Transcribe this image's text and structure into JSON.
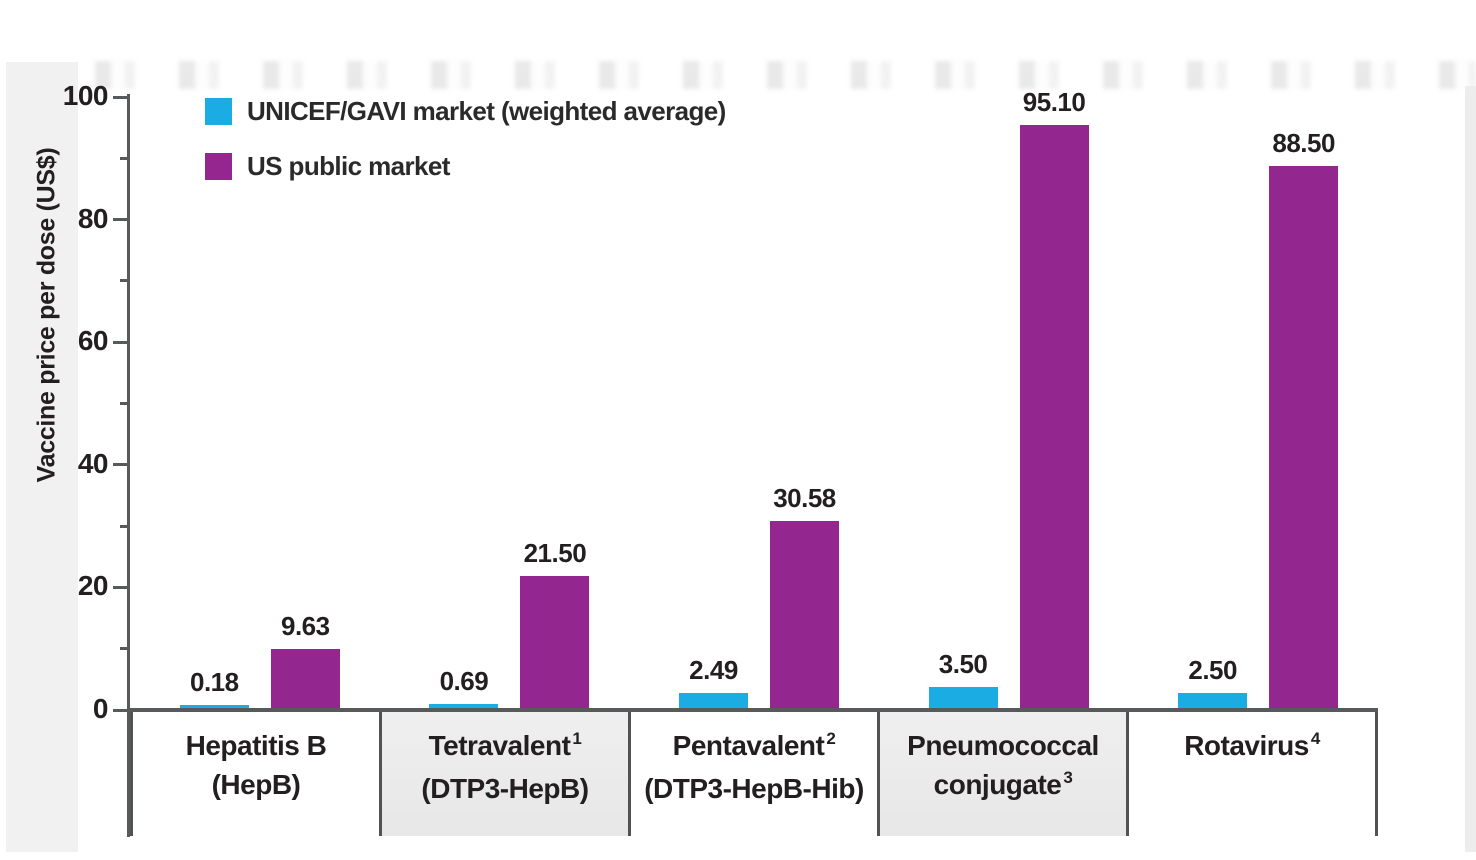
{
  "chart_data": {
    "type": "bar",
    "title": "",
    "ylabel": "Vaccine price per dose (US$)",
    "ylim": [
      0,
      100
    ],
    "yticks_major": [
      0,
      20,
      40,
      60,
      80,
      100
    ],
    "yticks_minor": [
      10,
      30,
      50,
      70,
      90
    ],
    "grid": false,
    "legend_position": "top-left-inside",
    "categories": [
      {
        "line1": "Hepatitis B",
        "line2": "(HepB)",
        "sup": "",
        "sup_on": 0
      },
      {
        "line1": "Tetravalent",
        "line2": "(DTP3-HepB)",
        "sup": "1",
        "sup_on": 1
      },
      {
        "line1": "Pentavalent",
        "line2": "(DTP3-HepB-Hib)",
        "sup": "2",
        "sup_on": 1
      },
      {
        "line1": "Pneumococcal",
        "line2": "conjugate",
        "sup": "3",
        "sup_on": 2
      },
      {
        "line1": "Rotavirus",
        "line2": "",
        "sup": "4",
        "sup_on": 1
      }
    ],
    "series": [
      {
        "name": "UNICEF/GAVI market (weighted average)",
        "color": "#1aace3",
        "values": [
          0.18,
          0.69,
          2.49,
          3.5,
          2.5
        ],
        "labels": [
          "0.18",
          "0.69",
          "2.49",
          "3.50",
          "2.50"
        ]
      },
      {
        "name": "US public market",
        "color": "#93278f",
        "values": [
          9.63,
          21.5,
          30.58,
          95.1,
          88.5
        ],
        "labels": [
          "9.63",
          "21.50",
          "30.58",
          "95.10",
          "88.50"
        ]
      }
    ]
  },
  "colors": {
    "axis": "#58595b",
    "text": "#231f20",
    "shaded_category_box": "#ebebeb",
    "unicef_gavi_bar": "#1aace3",
    "us_public_bar": "#93278f"
  }
}
